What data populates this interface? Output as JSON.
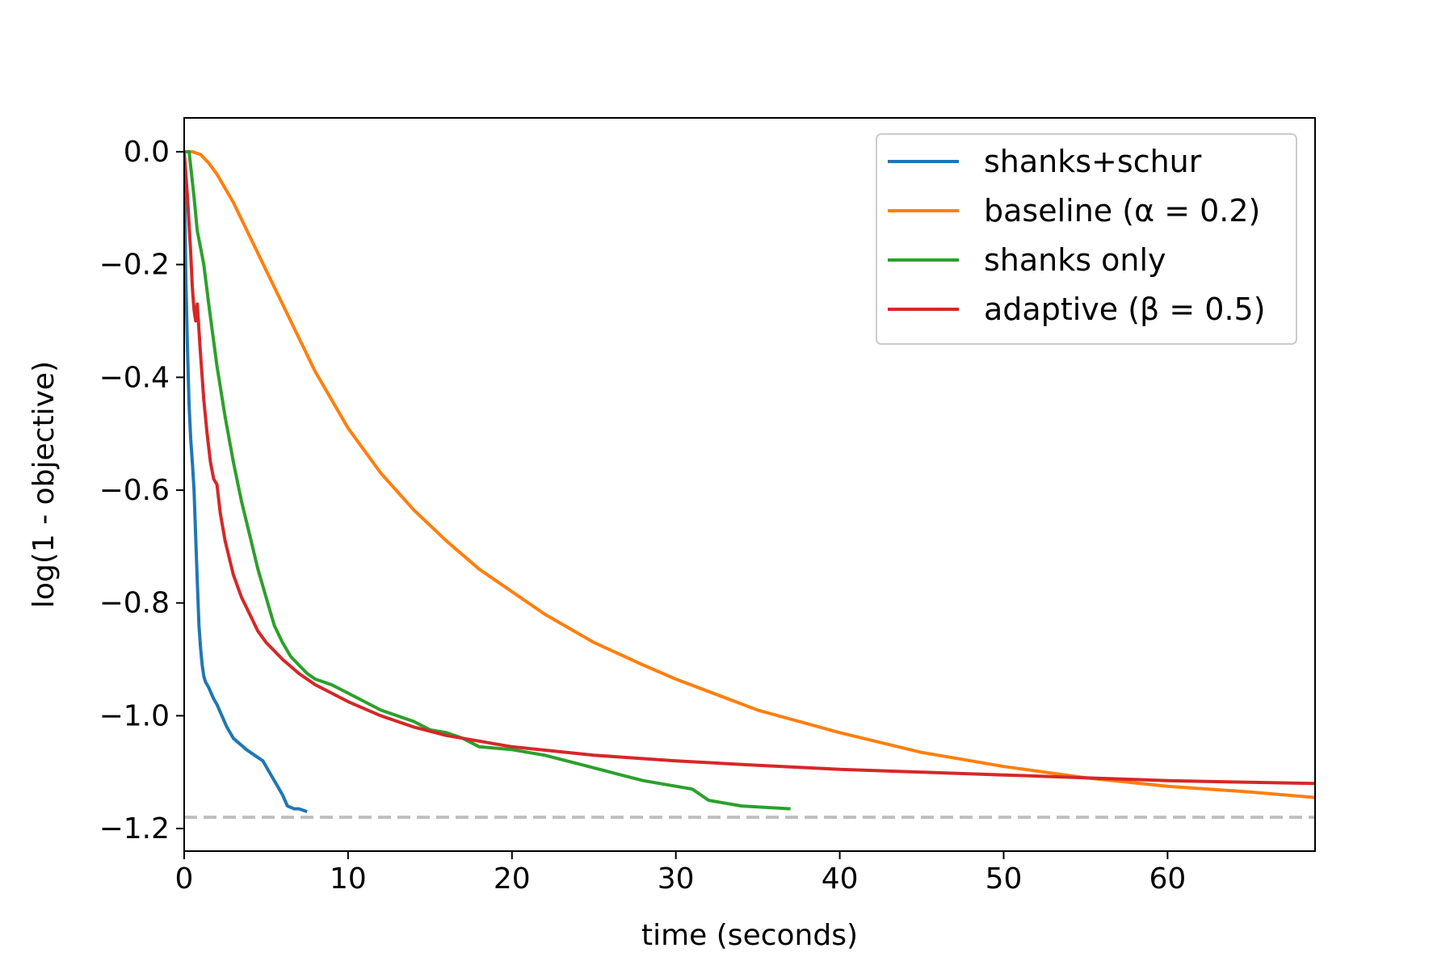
{
  "chart_data": {
    "type": "line",
    "title": "",
    "xlabel": "time (seconds)",
    "ylabel": "log(1 - objective)",
    "xlim": [
      0,
      69
    ],
    "ylim": [
      -1.24,
      0.06
    ],
    "x_ticks": [
      0,
      10,
      20,
      30,
      40,
      50,
      60
    ],
    "x_tick_labels": [
      "0",
      "10",
      "20",
      "30",
      "40",
      "50",
      "60"
    ],
    "y_ticks": [
      0.0,
      -0.2,
      -0.4,
      -0.6,
      -0.8,
      -1.0,
      -1.2
    ],
    "y_tick_labels": [
      "0.0",
      "−0.2",
      "−0.4",
      "−0.6",
      "−0.8",
      "−1.0",
      "−1.2"
    ],
    "grid": false,
    "legend_position": "top-right",
    "reference_line": {
      "y": -1.18,
      "style": "dashed",
      "color": "#bfbfbf"
    },
    "series": [
      {
        "name": "shanks+schur",
        "color": "#1f77b4",
        "x": [
          0,
          0.1,
          0.2,
          0.3,
          0.4,
          0.5,
          0.6,
          0.7,
          0.8,
          0.9,
          1.0,
          1.1,
          1.2,
          1.3,
          1.5,
          1.8,
          2.0,
          2.3,
          2.6,
          3.0,
          3.4,
          3.8,
          4.3,
          4.8,
          5.2,
          5.6,
          6.0,
          6.3,
          6.7,
          7.0,
          7.5
        ],
        "y": [
          0.0,
          -0.22,
          -0.35,
          -0.45,
          -0.51,
          -0.55,
          -0.6,
          -0.68,
          -0.76,
          -0.84,
          -0.88,
          -0.91,
          -0.93,
          -0.94,
          -0.95,
          -0.97,
          -0.98,
          -1.0,
          -1.02,
          -1.04,
          -1.05,
          -1.06,
          -1.07,
          -1.08,
          -1.1,
          -1.12,
          -1.14,
          -1.16,
          -1.165,
          -1.165,
          -1.17
        ]
      },
      {
        "name": "baseline (α = 0.2)",
        "color": "#ff7f0e",
        "x": [
          0.2,
          0.5,
          1.0,
          1.5,
          2,
          3,
          4,
          5,
          6,
          8,
          10,
          12,
          14,
          16,
          18,
          20,
          22,
          25,
          28,
          30,
          35,
          40,
          45,
          50,
          55,
          60,
          65,
          69
        ],
        "y": [
          0.0,
          0.0,
          -0.005,
          -0.02,
          -0.04,
          -0.09,
          -0.15,
          -0.21,
          -0.27,
          -0.39,
          -0.49,
          -0.57,
          -0.635,
          -0.69,
          -0.74,
          -0.78,
          -0.82,
          -0.87,
          -0.91,
          -0.935,
          -0.99,
          -1.03,
          -1.065,
          -1.09,
          -1.11,
          -1.125,
          -1.135,
          -1.145
        ]
      },
      {
        "name": "shanks only",
        "color": "#2ca02c",
        "x": [
          0,
          0.3,
          0.6,
          0.8,
          1.0,
          1.2,
          1.5,
          2.0,
          2.5,
          3.0,
          3.5,
          4.0,
          4.5,
          5.0,
          5.5,
          6.0,
          6.5,
          7.0,
          7.5,
          8.0,
          9.0,
          10.0,
          11.0,
          12.0,
          13.0,
          14.0,
          15.0,
          16.0,
          17.0,
          18.0,
          20.0,
          22.0,
          24.0,
          26.0,
          28.0,
          30.0,
          31.0,
          32.0,
          34.0,
          37.0
        ],
        "y": [
          0.0,
          -0.0,
          -0.08,
          -0.14,
          -0.17,
          -0.2,
          -0.27,
          -0.38,
          -0.47,
          -0.55,
          -0.62,
          -0.68,
          -0.74,
          -0.79,
          -0.84,
          -0.87,
          -0.895,
          -0.91,
          -0.925,
          -0.935,
          -0.945,
          -0.96,
          -0.975,
          -0.99,
          -1.0,
          -1.01,
          -1.025,
          -1.03,
          -1.04,
          -1.055,
          -1.06,
          -1.07,
          -1.085,
          -1.1,
          -1.115,
          -1.125,
          -1.13,
          -1.15,
          -1.16,
          -1.165
        ]
      },
      {
        "name": "adaptive (β = 0.5)",
        "color": "#d62728",
        "x": [
          0,
          0.2,
          0.4,
          0.5,
          0.6,
          0.7,
          0.8,
          1.0,
          1.2,
          1.4,
          1.6,
          1.8,
          2.0,
          2.2,
          2.5,
          3.0,
          3.5,
          4.0,
          4.5,
          5.0,
          5.5,
          6.0,
          7.0,
          8.0,
          9.0,
          10.0,
          12.0,
          14.0,
          16.0,
          18.0,
          20.0,
          25.0,
          30.0,
          35.0,
          40.0,
          45.0,
          50.0,
          55.0,
          60.0,
          65.0,
          69.0
        ],
        "y": [
          0.0,
          -0.08,
          -0.18,
          -0.24,
          -0.28,
          -0.3,
          -0.27,
          -0.36,
          -0.44,
          -0.5,
          -0.55,
          -0.58,
          -0.59,
          -0.64,
          -0.69,
          -0.75,
          -0.79,
          -0.82,
          -0.85,
          -0.87,
          -0.885,
          -0.9,
          -0.925,
          -0.945,
          -0.96,
          -0.975,
          -1.0,
          -1.02,
          -1.035,
          -1.045,
          -1.055,
          -1.07,
          -1.08,
          -1.088,
          -1.095,
          -1.1,
          -1.105,
          -1.11,
          -1.115,
          -1.118,
          -1.12
        ]
      }
    ]
  }
}
